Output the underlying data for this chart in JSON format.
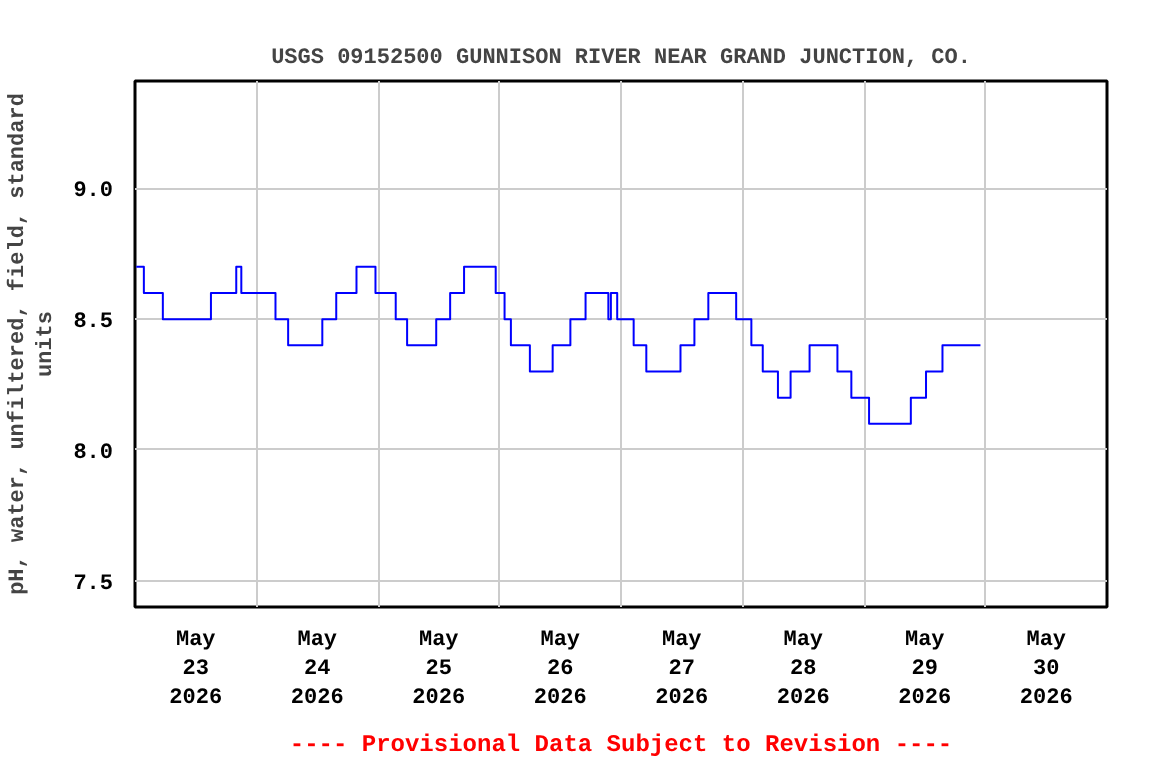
{
  "chart_data": {
    "type": "step",
    "title": "USGS 09152500 GUNNISON RIVER NEAR GRAND JUNCTION, CO.",
    "ylabel": "pH, water, unfiltered, field, standard units",
    "annotations": [
      "---- Provisional Data Subject to Revision ----"
    ],
    "x": [
      "2026-05-23T00:15",
      "2026-05-23T01:45",
      "2026-05-23T05:30",
      "2026-05-23T15:00",
      "2026-05-23T20:00",
      "2026-05-23T21:00",
      "2026-05-24T03:45",
      "2026-05-24T06:15",
      "2026-05-24T13:00",
      "2026-05-24T15:45",
      "2026-05-24T19:45",
      "2026-05-24T23:30",
      "2026-05-25T03:30",
      "2026-05-25T05:45",
      "2026-05-25T11:30",
      "2026-05-25T14:15",
      "2026-05-25T17:00",
      "2026-05-25T23:15",
      "2026-05-26T01:00",
      "2026-05-26T02:15",
      "2026-05-26T06:00",
      "2026-05-26T10:30",
      "2026-05-26T14:00",
      "2026-05-26T17:00",
      "2026-05-26T21:30",
      "2026-05-26T22:00",
      "2026-05-26T23:15",
      "2026-05-27T02:30",
      "2026-05-27T05:00",
      "2026-05-27T11:45",
      "2026-05-27T14:30",
      "2026-05-27T17:15",
      "2026-05-27T22:45",
      "2026-05-28T01:45",
      "2026-05-28T04:00",
      "2026-05-28T07:00",
      "2026-05-28T09:30",
      "2026-05-28T13:15",
      "2026-05-28T18:45",
      "2026-05-28T21:30",
      "2026-05-29T01:00",
      "2026-05-29T09:15",
      "2026-05-29T12:15",
      "2026-05-29T15:30",
      "2026-05-29T23:00"
    ],
    "series": [
      {
        "color": "#0000ff",
        "values": [
          8.7,
          8.6,
          8.5,
          8.6,
          8.7,
          8.6,
          8.5,
          8.4,
          8.5,
          8.6,
          8.7,
          8.6,
          8.5,
          8.4,
          8.5,
          8.6,
          8.7,
          8.6,
          8.5,
          8.4,
          8.3,
          8.4,
          8.5,
          8.6,
          8.5,
          8.6,
          8.5,
          8.4,
          8.3,
          8.4,
          8.5,
          8.6,
          8.5,
          8.4,
          8.3,
          8.2,
          8.3,
          8.4,
          8.3,
          8.2,
          8.1,
          8.2,
          8.3,
          8.4,
          8.4
        ]
      }
    ],
    "xlim": [
      "2026-05-23",
      "2026-05-31"
    ],
    "xticks": [
      {
        "value": "2026-05-23T12:00",
        "label": "May\n23\n2026"
      },
      {
        "value": "2026-05-24T12:00",
        "label": "May\n24\n2026"
      },
      {
        "value": "2026-05-25T12:00",
        "label": "May\n25\n2026"
      },
      {
        "value": "2026-05-26T12:00",
        "label": "May\n26\n2026"
      },
      {
        "value": "2026-05-27T12:00",
        "label": "May\n27\n2026"
      },
      {
        "value": "2026-05-28T12:00",
        "label": "May\n28\n2026"
      },
      {
        "value": "2026-05-29T12:00",
        "label": "May\n29\n2026"
      },
      {
        "value": "2026-05-30T12:00",
        "label": "May\n30\n2026"
      },
      {
        "value": "2026-05-24",
        "label": null
      },
      {
        "value": "2026-05-25",
        "label": null
      },
      {
        "value": "2026-05-26",
        "label": null
      },
      {
        "value": "2026-05-27",
        "label": null
      },
      {
        "value": "2026-05-28",
        "label": null
      },
      {
        "value": "2026-05-29",
        "label": null
      },
      {
        "value": "2026-05-30",
        "label": null
      }
    ],
    "ylim": [
      7.4,
      9.41
    ],
    "yticks": [
      7.5,
      {
        "value": 8,
        "label": "8.0"
      },
      8.5,
      {
        "value": 9,
        "label": "9.0"
      }
    ],
    "grid": true,
    "line_style": "solid",
    "marker": "none"
  }
}
